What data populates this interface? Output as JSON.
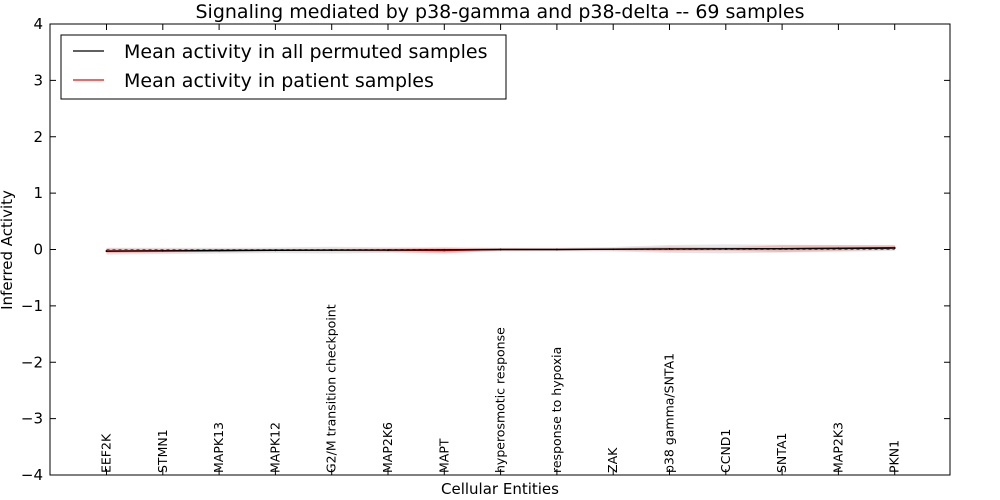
{
  "chart_data": {
    "type": "line",
    "title": "Signaling mediated by p38-gamma and p38-delta -- 69 samples",
    "xlabel": "Cellular Entities",
    "ylabel": "Inferred Activity",
    "ylim": [
      -4,
      4
    ],
    "yticks": [
      4,
      3,
      2,
      1,
      0,
      -1,
      -2,
      -3,
      -4
    ],
    "ytick_labels": [
      "4",
      "3",
      "2",
      "1",
      "0",
      "−1",
      "−2",
      "−3",
      "−4"
    ],
    "legend_position": "top-left",
    "categories": [
      "EEF2K",
      "STMN1",
      "MAPK13",
      "MAPK12",
      "G2/M transition checkpoint",
      "MAP2K6",
      "MAPT",
      "hyperosmotic response",
      "response to hypoxia",
      "ZAK",
      "p38 gamma/SNTA1",
      "CCND1",
      "SNTA1",
      "MAP2K3",
      "PKN1"
    ],
    "series": [
      {
        "name": "Mean activity in all permuted samples",
        "color": "#000000",
        "values": [
          -0.03,
          -0.025,
          -0.02,
          -0.015,
          -0.012,
          -0.01,
          -0.005,
          0.0,
          0.0,
          0.005,
          0.01,
          0.012,
          0.015,
          0.02,
          0.025
        ],
        "band_half_width": [
          0.06,
          0.055,
          0.05,
          0.05,
          0.06,
          0.05,
          0.045,
          0.03,
          0.03,
          0.04,
          0.07,
          0.08,
          0.07,
          0.06,
          0.05
        ]
      },
      {
        "name": "Mean activity in patient samples",
        "color": "#ff0000",
        "values": [
          -0.025,
          -0.02,
          -0.015,
          -0.01,
          -0.008,
          -0.012,
          -0.02,
          0.0,
          0.0,
          0.005,
          0.01,
          0.01,
          0.015,
          0.025,
          0.035
        ],
        "band_half_width": [
          0.04,
          0.03,
          0.025,
          0.02,
          0.02,
          0.03,
          0.05,
          0.02,
          0.015,
          0.02,
          0.04,
          0.03,
          0.06,
          0.05,
          0.04
        ]
      }
    ]
  }
}
